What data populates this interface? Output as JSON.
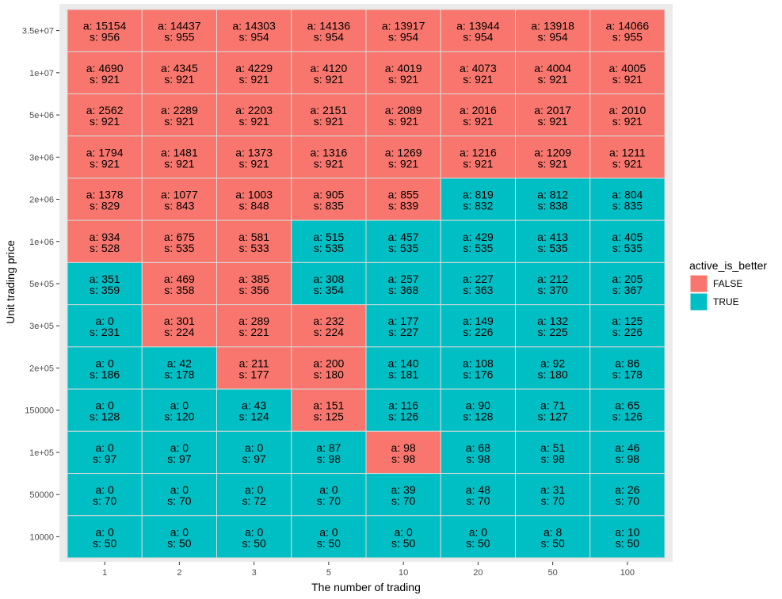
{
  "chart_data": {
    "type": "heatmap",
    "xlabel": "The number of trading",
    "ylabel": "Unit trading price",
    "x_categories": [
      "1",
      "2",
      "3",
      "5",
      "10",
      "20",
      "50",
      "100"
    ],
    "y_categories": [
      "10000",
      "50000",
      "1e+05",
      "150000",
      "2e+05",
      "3e+05",
      "5e+05",
      "1e+06",
      "2e+06",
      "3e+06",
      "5e+06",
      "1e+07",
      "3.5e+07"
    ],
    "fill_variable": "active_is_better",
    "legend": {
      "title": "active_is_better",
      "placement": "right",
      "entries": [
        {
          "label": "FALSE",
          "color": "#F8766D"
        },
        {
          "label": "TRUE",
          "color": "#00BFC4"
        }
      ]
    },
    "grid": true,
    "rows": [
      {
        "y": "3.5e+07",
        "a": [
          15154,
          14437,
          14303,
          14136,
          13917,
          13944,
          13918,
          14066
        ],
        "s": [
          956,
          955,
          954,
          954,
          954,
          954,
          954,
          955
        ],
        "better": [
          false,
          false,
          false,
          false,
          false,
          false,
          false,
          false
        ]
      },
      {
        "y": "1e+07",
        "a": [
          4690,
          4345,
          4229,
          4120,
          4019,
          4073,
          4004,
          4005
        ],
        "s": [
          921,
          921,
          921,
          921,
          921,
          921,
          921,
          921
        ],
        "better": [
          false,
          false,
          false,
          false,
          false,
          false,
          false,
          false
        ]
      },
      {
        "y": "5e+06",
        "a": [
          2562,
          2289,
          2203,
          2151,
          2089,
          2016,
          2017,
          2010
        ],
        "s": [
          921,
          921,
          921,
          921,
          921,
          921,
          921,
          921
        ],
        "better": [
          false,
          false,
          false,
          false,
          false,
          false,
          false,
          false
        ]
      },
      {
        "y": "3e+06",
        "a": [
          1794,
          1481,
          1373,
          1316,
          1269,
          1216,
          1209,
          1211
        ],
        "s": [
          921,
          921,
          921,
          921,
          921,
          921,
          921,
          921
        ],
        "better": [
          false,
          false,
          false,
          false,
          false,
          false,
          false,
          false
        ]
      },
      {
        "y": "2e+06",
        "a": [
          1378,
          1077,
          1003,
          905,
          855,
          819,
          812,
          804
        ],
        "s": [
          829,
          843,
          848,
          835,
          839,
          832,
          838,
          835
        ],
        "better": [
          false,
          false,
          false,
          false,
          false,
          true,
          true,
          true
        ]
      },
      {
        "y": "1e+06",
        "a": [
          934,
          675,
          581,
          515,
          457,
          429,
          413,
          405
        ],
        "s": [
          528,
          535,
          533,
          535,
          535,
          535,
          535,
          535
        ],
        "better": [
          false,
          false,
          false,
          true,
          true,
          true,
          true,
          true
        ]
      },
      {
        "y": "5e+05",
        "a": [
          351,
          469,
          385,
          308,
          257,
          227,
          212,
          205
        ],
        "s": [
          359,
          358,
          356,
          354,
          368,
          363,
          370,
          367
        ],
        "better": [
          true,
          false,
          false,
          true,
          true,
          true,
          true,
          true
        ]
      },
      {
        "y": "3e+05",
        "a": [
          0,
          301,
          289,
          232,
          177,
          149,
          132,
          125
        ],
        "s": [
          231,
          224,
          221,
          224,
          227,
          226,
          225,
          226
        ],
        "better": [
          true,
          false,
          false,
          false,
          true,
          true,
          true,
          true
        ]
      },
      {
        "y": "2e+05",
        "a": [
          0,
          42,
          211,
          200,
          140,
          108,
          92,
          86
        ],
        "s": [
          186,
          178,
          177,
          180,
          181,
          176,
          180,
          178
        ],
        "better": [
          true,
          true,
          false,
          false,
          true,
          true,
          true,
          true
        ]
      },
      {
        "y": "150000",
        "a": [
          0,
          0,
          43,
          151,
          116,
          90,
          71,
          65
        ],
        "s": [
          128,
          120,
          124,
          125,
          126,
          128,
          127,
          126
        ],
        "better": [
          true,
          true,
          true,
          false,
          true,
          true,
          true,
          true
        ]
      },
      {
        "y": "1e+05",
        "a": [
          0,
          0,
          0,
          87,
          98,
          68,
          51,
          46
        ],
        "s": [
          97,
          97,
          97,
          98,
          98,
          98,
          98,
          98
        ],
        "better": [
          true,
          true,
          true,
          true,
          false,
          true,
          true,
          true
        ]
      },
      {
        "y": "50000",
        "a": [
          0,
          0,
          0,
          0,
          39,
          48,
          31,
          26
        ],
        "s": [
          70,
          70,
          72,
          70,
          70,
          70,
          70,
          70
        ],
        "better": [
          true,
          true,
          true,
          true,
          true,
          true,
          true,
          true
        ]
      },
      {
        "y": "10000",
        "a": [
          0,
          0,
          0,
          0,
          0,
          0,
          8,
          10
        ],
        "s": [
          50,
          50,
          50,
          50,
          50,
          50,
          50,
          50
        ],
        "better": [
          true,
          true,
          true,
          true,
          true,
          true,
          true,
          true
        ]
      }
    ]
  }
}
